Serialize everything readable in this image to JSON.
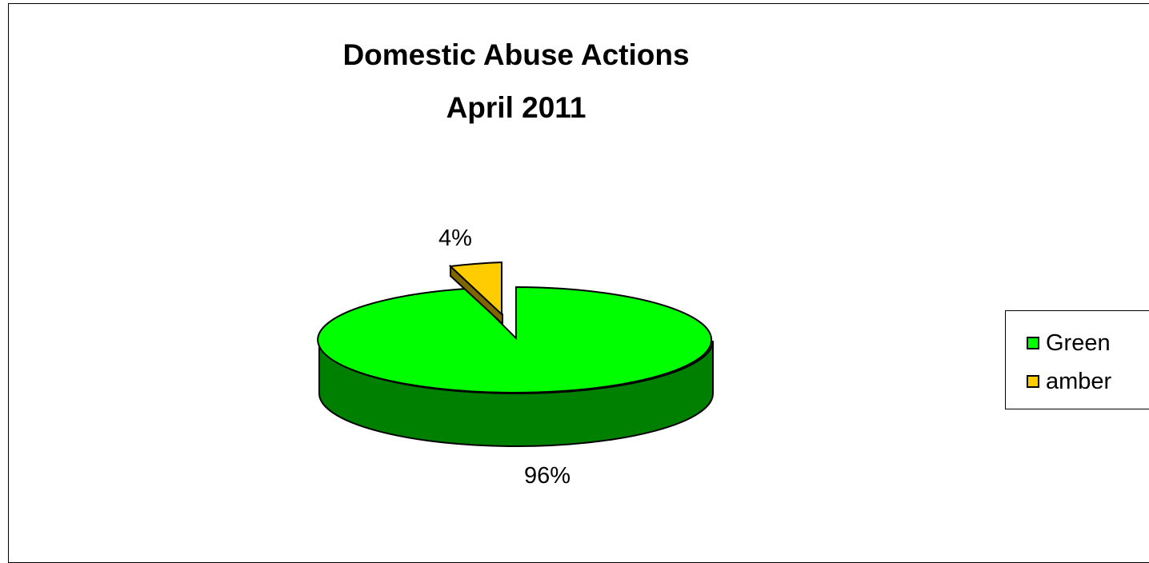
{
  "chart_data": {
    "type": "pie",
    "title": [
      "Domestic Abuse Actions",
      "April 2011"
    ],
    "categories": [
      "Green",
      "amber"
    ],
    "values": [
      96,
      4
    ],
    "labels": [
      "96%",
      "4%"
    ],
    "colors": {
      "Green": "#00FF00",
      "amber": "#FFCC00"
    },
    "legend_position": "right"
  }
}
